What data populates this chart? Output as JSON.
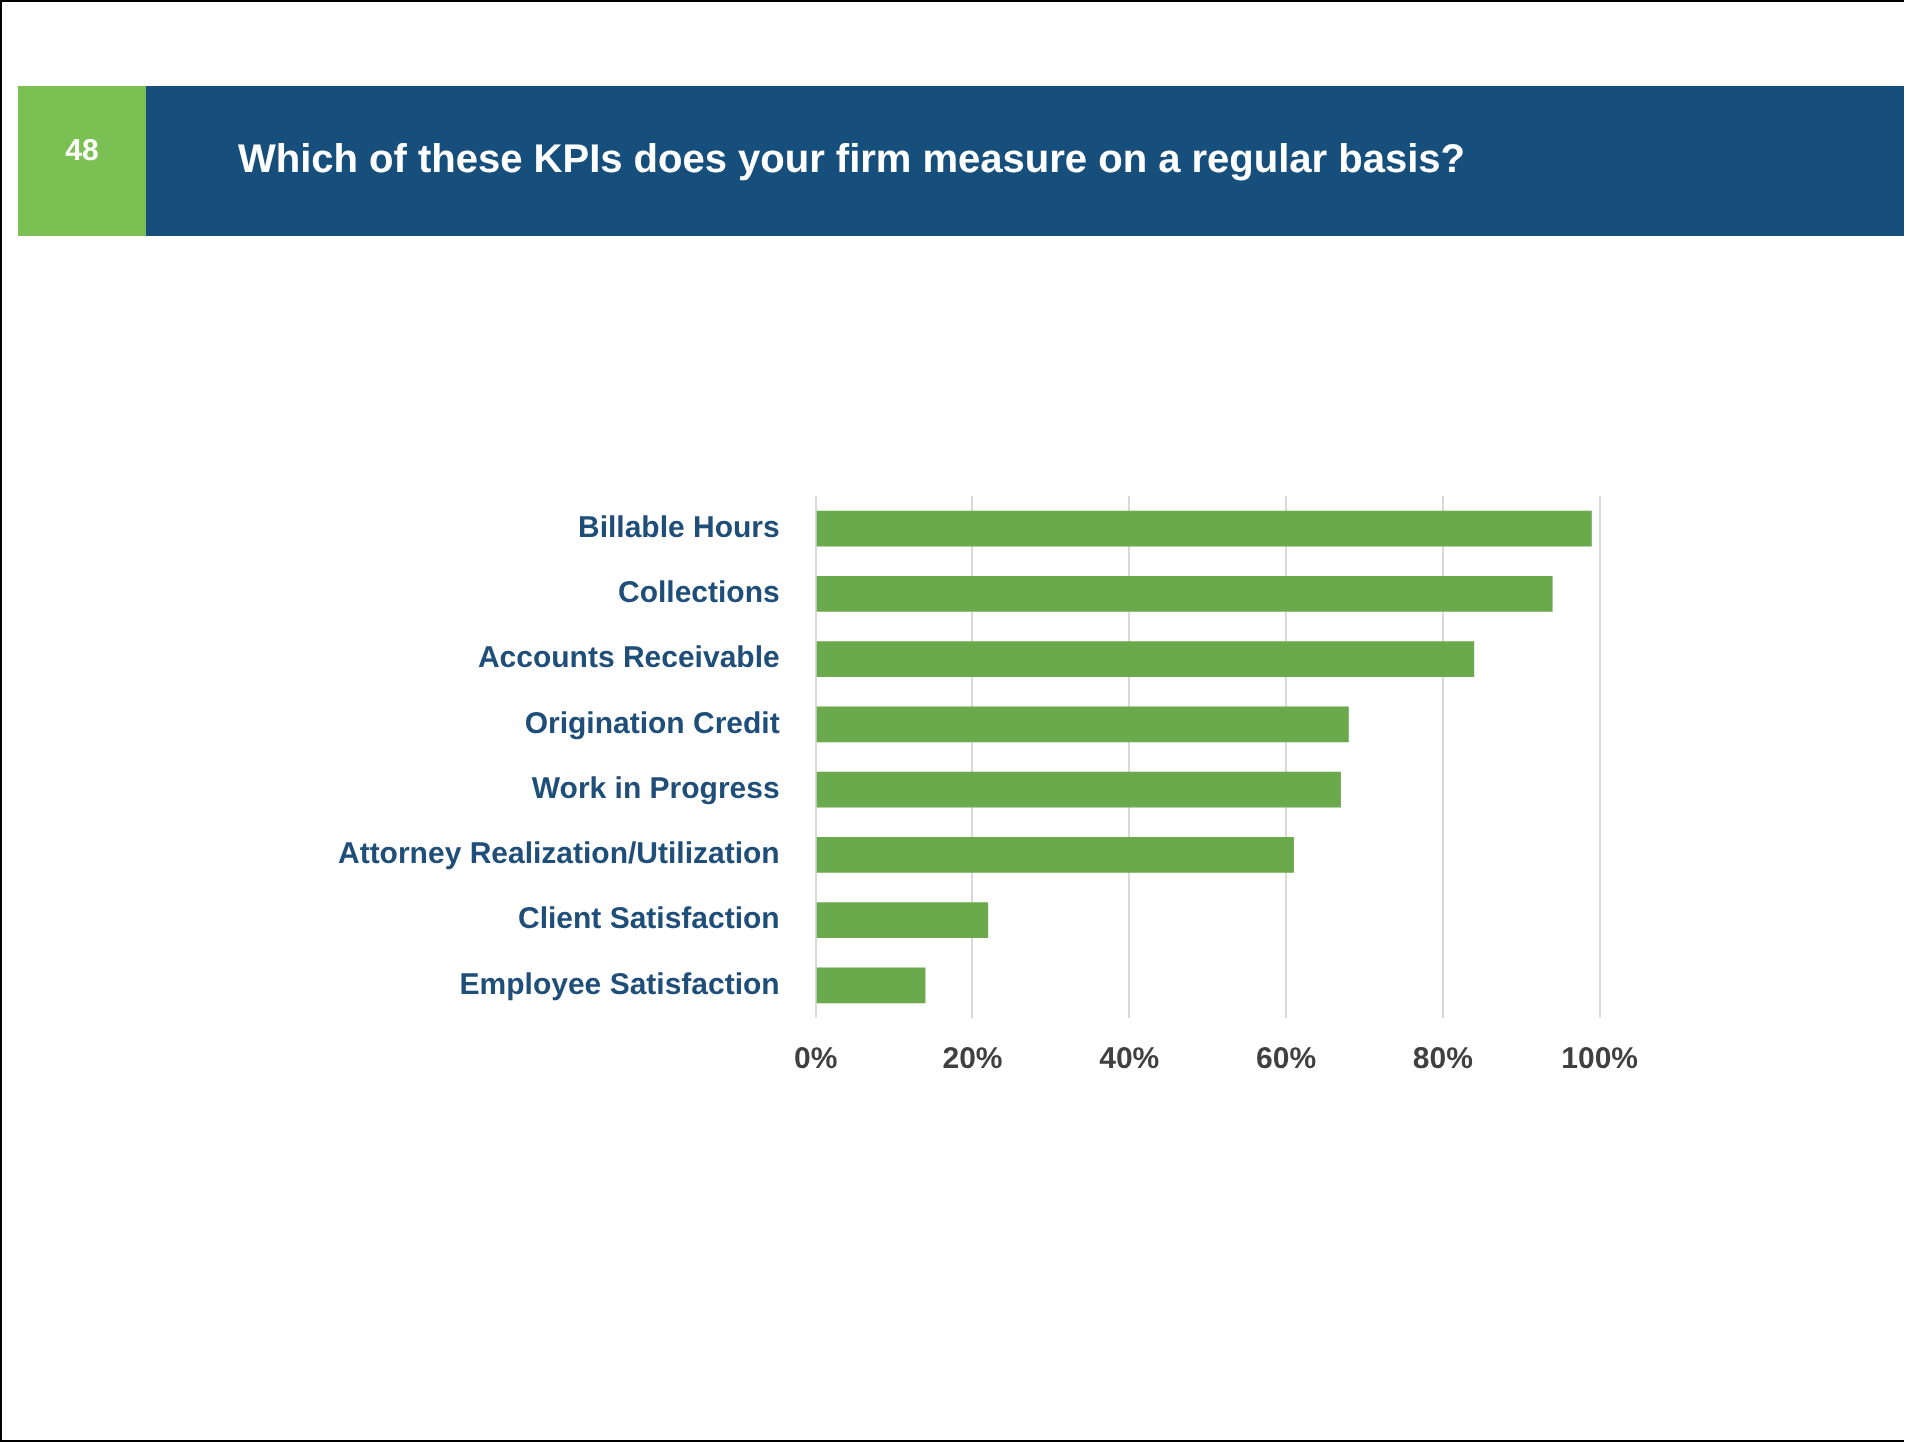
{
  "chart_data": {
    "type": "bar",
    "orientation": "horizontal",
    "title": "Which of these KPIs does your firm measure on a regular basis?",
    "annotations": [
      "48"
    ],
    "categories": [
      "Billable Hours",
      "Collections",
      "Accounts Receivable",
      "Origination Credit",
      "Work in Progress",
      "Attorney Realization/Utilization",
      "Client Satisfaction",
      "Employee Satisfaction"
    ],
    "values": [
      99,
      94,
      84,
      68,
      67,
      61,
      22,
      14
    ],
    "color": "#6aaa4c",
    "xlim": [
      0,
      100
    ],
    "xticks": [
      {
        "value": 0,
        "label": "0%"
      },
      {
        "value": 20,
        "label": "20%"
      },
      {
        "value": 40,
        "label": "40%"
      },
      {
        "value": 60,
        "label": "60%"
      },
      {
        "value": 80,
        "label": "80%"
      },
      {
        "value": 100,
        "label": "100%"
      }
    ],
    "grid": "x",
    "legend": false
  }
}
